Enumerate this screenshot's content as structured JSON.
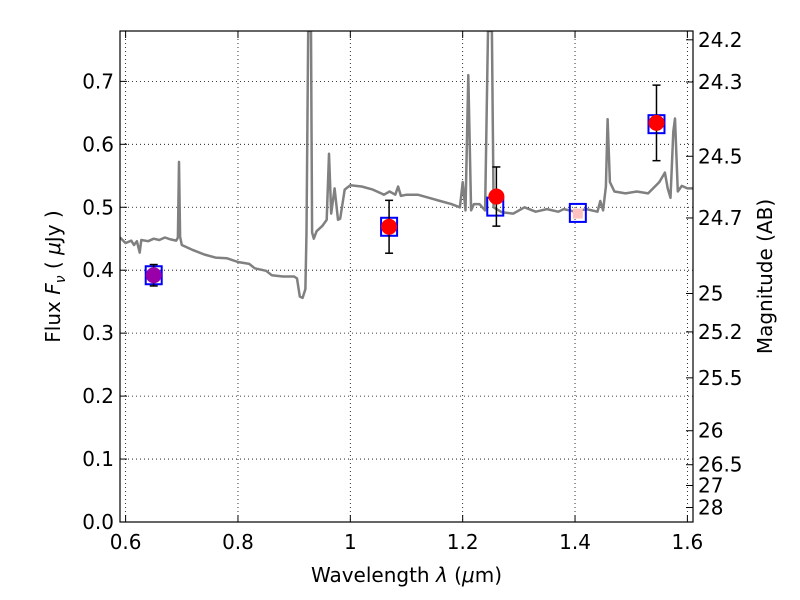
{
  "chart_data": {
    "type": "scatter",
    "title": "",
    "xlabel": "Wavelength  λ (μm)",
    "ylabel": "Flux  F_ν  ( μJy )",
    "ylabel_right": "Magnitude (AB)",
    "xlim": [
      0.59,
      1.61
    ],
    "ylim": [
      0.0,
      0.78
    ],
    "grid": true,
    "x_ticks": [
      0.6,
      0.8,
      1.0,
      1.2,
      1.4,
      1.6
    ],
    "x_tick_labels": [
      "0.6",
      "0.8",
      "1",
      "1.2",
      "1.4",
      "1.6"
    ],
    "y_ticks": [
      0.0,
      0.1,
      0.2,
      0.3,
      0.4,
      0.5,
      0.6,
      0.7
    ],
    "y_tick_labels": [
      "0.0",
      "0.1",
      "0.2",
      "0.3",
      "0.4",
      "0.5",
      "0.6",
      "0.7"
    ],
    "right_ticks": [
      {
        "label": "24.2",
        "flux": 0.766
      },
      {
        "label": "24.3",
        "flux": 0.699
      },
      {
        "label": "24.5",
        "flux": 0.581
      },
      {
        "label": "24.7",
        "flux": 0.483
      },
      {
        "label": "25",
        "flux": 0.363
      },
      {
        "label": "25.2",
        "flux": 0.302
      },
      {
        "label": "25.5",
        "flux": 0.229
      },
      {
        "label": "26",
        "flux": 0.145
      },
      {
        "label": "26.5",
        "flux": 0.091
      },
      {
        "label": "27",
        "flux": 0.058
      },
      {
        "label": "28",
        "flux": 0.023
      }
    ],
    "series": [
      {
        "kind": "line",
        "color": "#808080",
        "points": [
          [
            0.59,
            0.452
          ],
          [
            0.6,
            0.443
          ],
          [
            0.61,
            0.447
          ],
          [
            0.615,
            0.44
          ],
          [
            0.62,
            0.446
          ],
          [
            0.625,
            0.428
          ],
          [
            0.628,
            0.448
          ],
          [
            0.64,
            0.446
          ],
          [
            0.65,
            0.45
          ],
          [
            0.66,
            0.448
          ],
          [
            0.67,
            0.452
          ],
          [
            0.68,
            0.449
          ],
          [
            0.69,
            0.447
          ],
          [
            0.693,
            0.452
          ],
          [
            0.695,
            0.572
          ],
          [
            0.697,
            0.453
          ],
          [
            0.7,
            0.44
          ],
          [
            0.72,
            0.432
          ],
          [
            0.74,
            0.425
          ],
          [
            0.76,
            0.42
          ],
          [
            0.78,
            0.419
          ],
          [
            0.8,
            0.413
          ],
          [
            0.82,
            0.41
          ],
          [
            0.83,
            0.403
          ],
          [
            0.85,
            0.399
          ],
          [
            0.86,
            0.392
          ],
          [
            0.88,
            0.39
          ],
          [
            0.9,
            0.39
          ],
          [
            0.905,
            0.387
          ],
          [
            0.91,
            0.358
          ],
          [
            0.915,
            0.356
          ],
          [
            0.92,
            0.37
          ],
          [
            0.922,
            0.46
          ],
          [
            0.925,
            0.78
          ],
          [
            0.93,
            0.78
          ],
          [
            0.932,
            0.46
          ],
          [
            0.935,
            0.45
          ],
          [
            0.94,
            0.462
          ],
          [
            0.95,
            0.47
          ],
          [
            0.958,
            0.48
          ],
          [
            0.962,
            0.585
          ],
          [
            0.966,
            0.49
          ],
          [
            0.972,
            0.53
          ],
          [
            0.978,
            0.48
          ],
          [
            0.982,
            0.482
          ],
          [
            0.99,
            0.528
          ],
          [
            1.0,
            0.535
          ],
          [
            1.02,
            0.533
          ],
          [
            1.04,
            0.528
          ],
          [
            1.06,
            0.52
          ],
          [
            1.07,
            0.525
          ],
          [
            1.08,
            0.52
          ],
          [
            1.085,
            0.533
          ],
          [
            1.09,
            0.518
          ],
          [
            1.1,
            0.52
          ],
          [
            1.12,
            0.52
          ],
          [
            1.14,
            0.515
          ],
          [
            1.16,
            0.51
          ],
          [
            1.18,
            0.505
          ],
          [
            1.195,
            0.5
          ],
          [
            1.2,
            0.54
          ],
          [
            1.205,
            0.495
          ],
          [
            1.21,
            0.71
          ],
          [
            1.215,
            0.495
          ],
          [
            1.22,
            0.505
          ],
          [
            1.23,
            0.505
          ],
          [
            1.24,
            0.495
          ],
          [
            1.245,
            0.78
          ],
          [
            1.252,
            0.78
          ],
          [
            1.255,
            0.5
          ],
          [
            1.27,
            0.492
          ],
          [
            1.29,
            0.49
          ],
          [
            1.31,
            0.5
          ],
          [
            1.33,
            0.493
          ],
          [
            1.35,
            0.497
          ],
          [
            1.37,
            0.493
          ],
          [
            1.38,
            0.497
          ],
          [
            1.4,
            0.493
          ],
          [
            1.42,
            0.497
          ],
          [
            1.44,
            0.493
          ],
          [
            1.445,
            0.51
          ],
          [
            1.45,
            0.495
          ],
          [
            1.455,
            0.533
          ],
          [
            1.458,
            0.64
          ],
          [
            1.462,
            0.54
          ],
          [
            1.47,
            0.525
          ],
          [
            1.49,
            0.522
          ],
          [
            1.51,
            0.525
          ],
          [
            1.53,
            0.522
          ],
          [
            1.55,
            0.54
          ],
          [
            1.56,
            0.555
          ],
          [
            1.565,
            0.53
          ],
          [
            1.57,
            0.515
          ],
          [
            1.575,
            0.62
          ],
          [
            1.578,
            0.641
          ],
          [
            1.583,
            0.525
          ],
          [
            1.59,
            0.534
          ],
          [
            1.6,
            0.53
          ],
          [
            1.61,
            0.53
          ]
        ]
      },
      {
        "kind": "squares",
        "color": "#0000ff",
        "points": [
          [
            0.65,
            0.392
          ],
          [
            1.069,
            0.469
          ],
          [
            1.258,
            0.501
          ],
          [
            1.405,
            0.491
          ],
          [
            1.545,
            0.632
          ]
        ]
      },
      {
        "kind": "markers",
        "color": "#ff0000",
        "points": [
          {
            "x": 0.65,
            "y": 0.392,
            "err": 0.017,
            "color": "#9900aa",
            "fill": true
          },
          {
            "x": 1.069,
            "y": 0.469,
            "err": 0.042,
            "color": "#ff0000",
            "fill": true
          },
          {
            "x": 1.26,
            "y": 0.517,
            "err": 0.047,
            "color": "#ff0000",
            "fill": true
          },
          {
            "x": 1.545,
            "y": 0.634,
            "err": 0.06,
            "color": "#ff0000",
            "fill": true
          },
          {
            "x": 1.405,
            "y": 0.49,
            "err": 0.0,
            "color": "#ffc0c0",
            "fill": false
          }
        ]
      }
    ]
  }
}
